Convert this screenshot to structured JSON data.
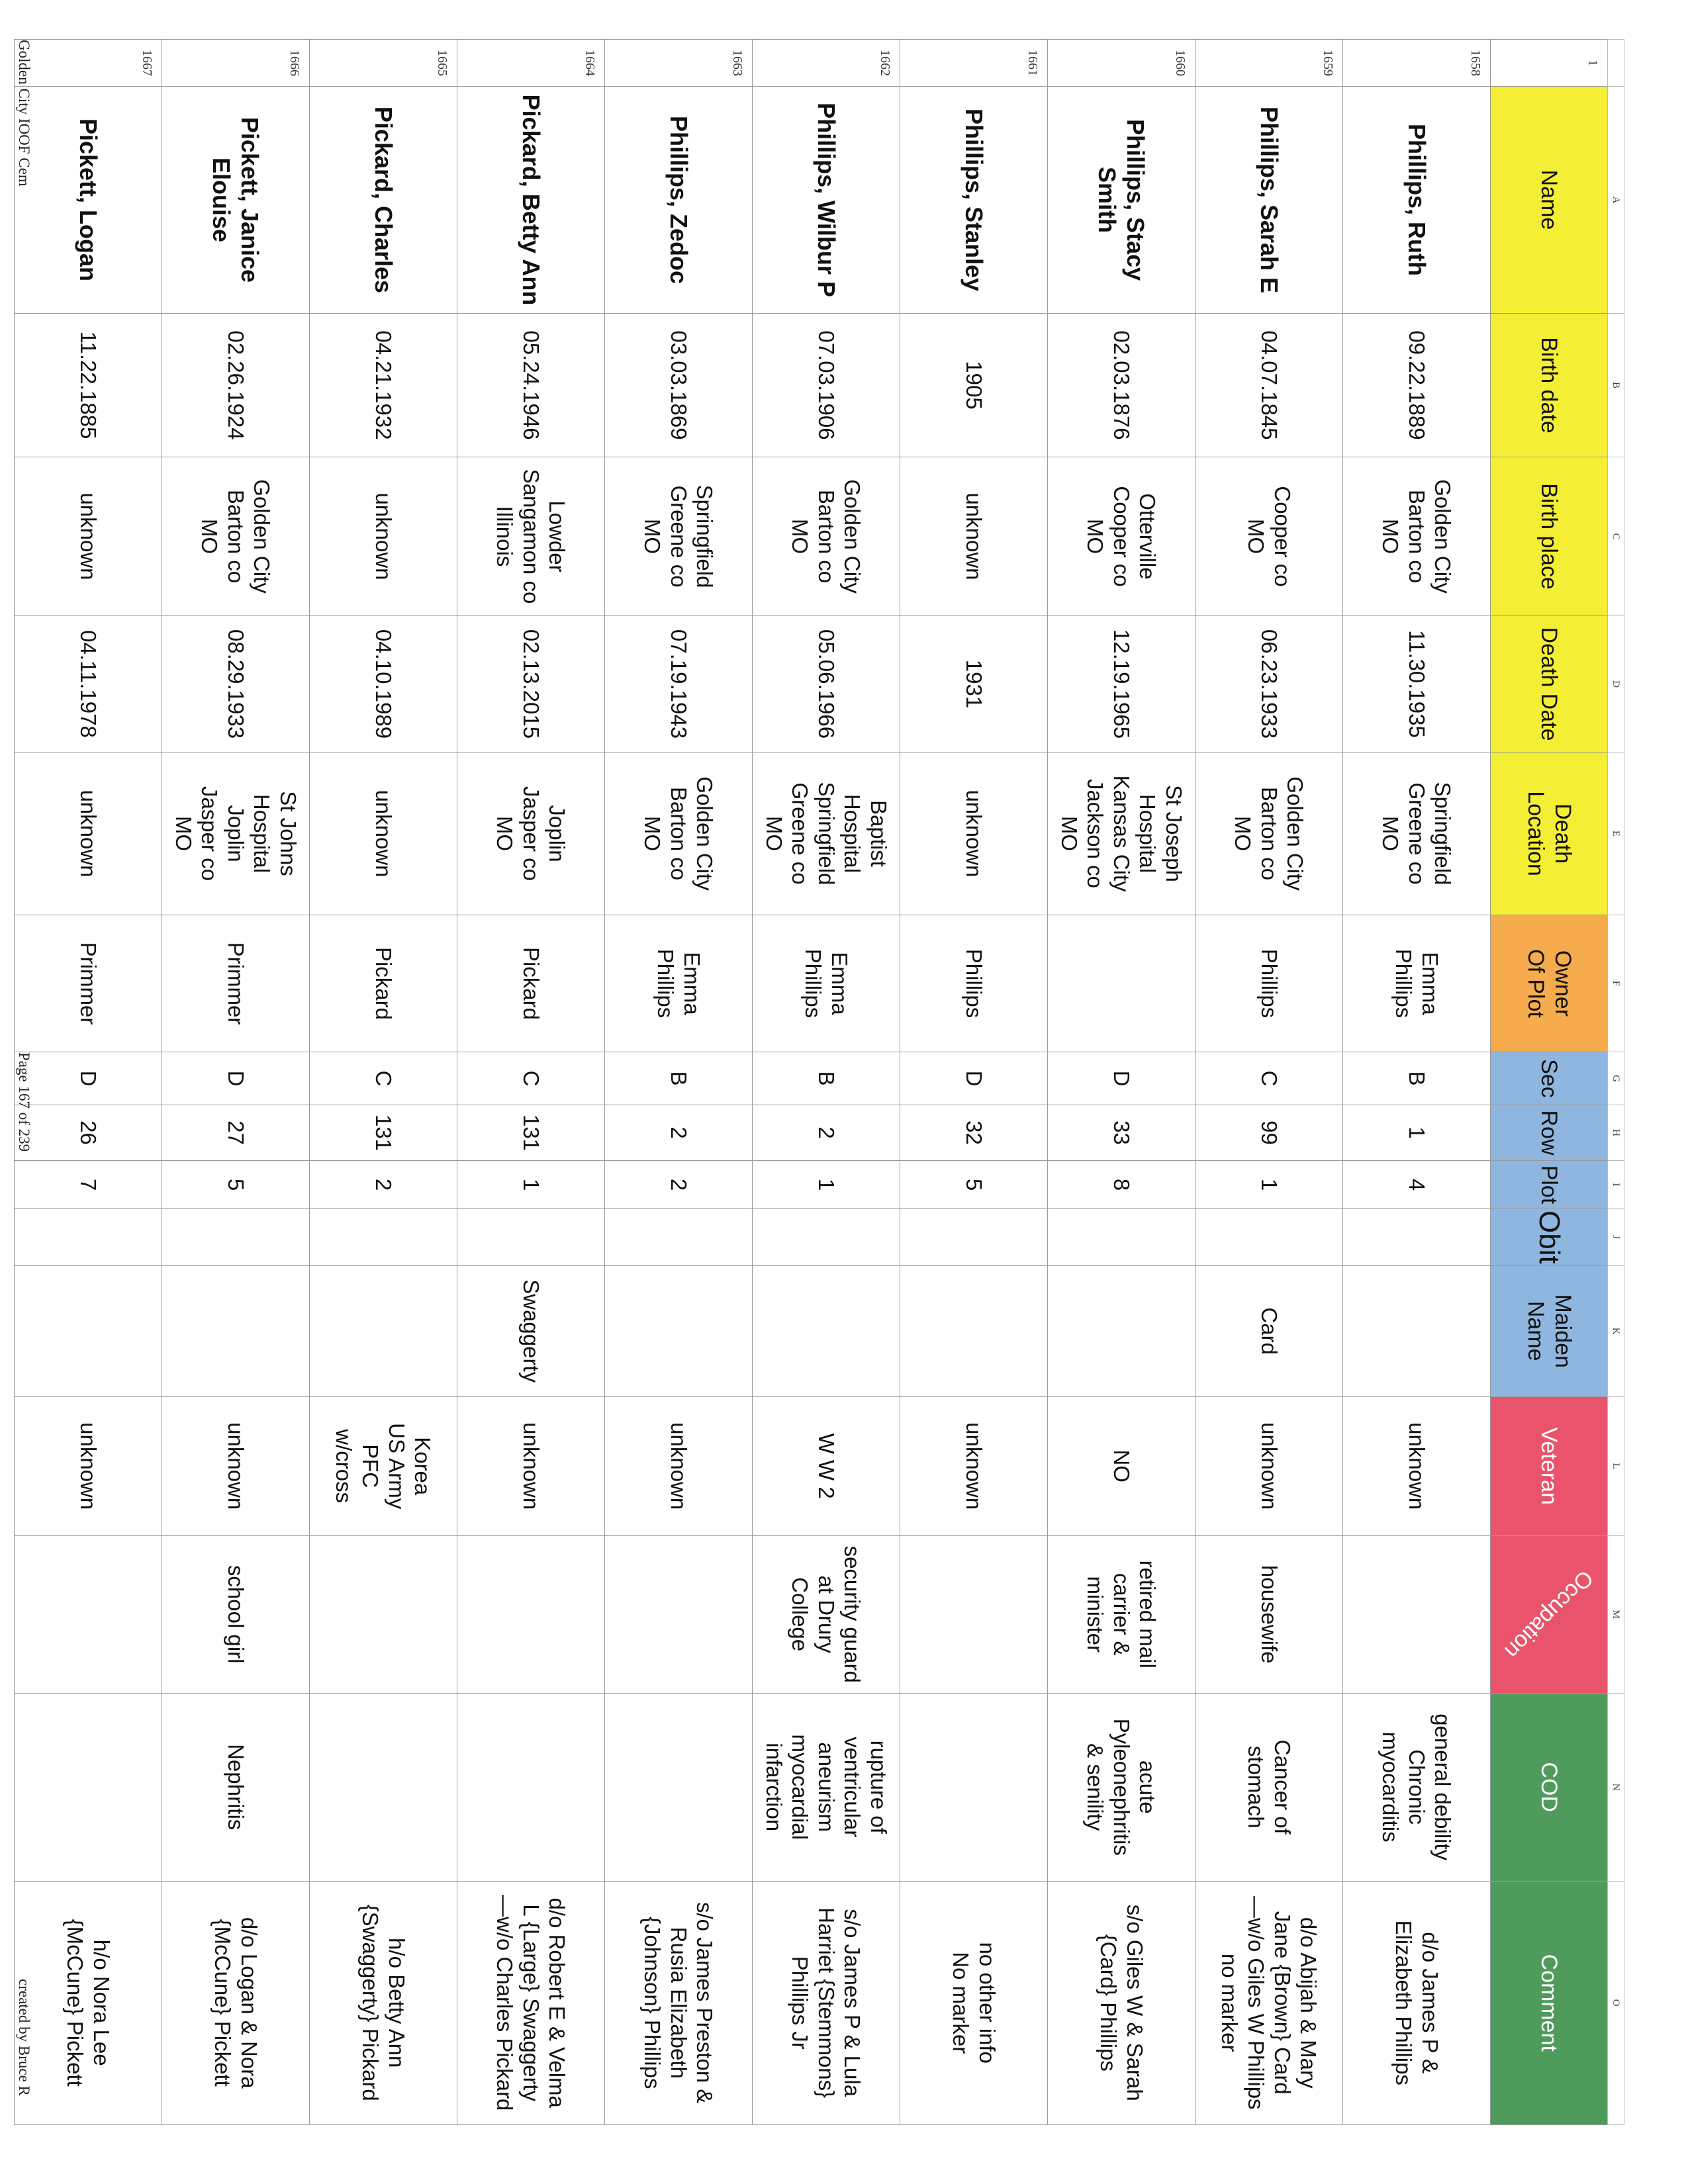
{
  "column_letters": [
    "",
    "A",
    "B",
    "C",
    "D",
    "E",
    "F",
    "G",
    "H",
    "I",
    "J",
    "K",
    "L",
    "M",
    "N",
    "O"
  ],
  "header": {
    "row_number": "1",
    "columns": [
      {
        "label": "Name",
        "color": "#f4ef34"
      },
      {
        "label": "Birth date",
        "color": "#f4ef34"
      },
      {
        "label": "Birth place",
        "color": "#f4ef34"
      },
      {
        "label": "Death Date",
        "color": "#f4ef34"
      },
      {
        "label": "Death\nLocation",
        "color": "#f4ef34"
      },
      {
        "label": "Owner\nOf Plot",
        "color": "#f6ab4c"
      },
      {
        "label": "Sec",
        "color": "#8fb6de"
      },
      {
        "label": "Row",
        "color": "#8fb6de"
      },
      {
        "label": "Plot",
        "color": "#8fb6de"
      },
      {
        "label": "Obit",
        "color": "#8fb6de"
      },
      {
        "label": "Maiden\nName",
        "color": "#8fb6de"
      },
      {
        "label": "Veteran",
        "color": "#e9546c"
      },
      {
        "label": "Occupation",
        "color": "#e9546c"
      },
      {
        "label": "COD",
        "color": "#4f9b5c"
      },
      {
        "label": "Comment",
        "color": "#4f9b5c"
      }
    ]
  },
  "rows": [
    {
      "num": "1658",
      "cells": [
        "Phillips, Ruth",
        "09.22.1889",
        "Golden City\nBarton co\nMO",
        "11.30.1935",
        "Springfield\nGreene co\nMO",
        "Emma\nPhillips",
        "B",
        "1",
        "4",
        "",
        "",
        "unknown",
        "",
        "general debility\nChronic\nmyocarditis",
        "d/o James P &\nElizabeth Phillips"
      ]
    },
    {
      "num": "1659",
      "cells": [
        "Phillips, Sarah E",
        "04.07.1845",
        "Cooper co\nMO",
        "06.23.1933",
        "Golden City\nBarton co\nMO",
        "Phillips",
        "C",
        "99",
        "1",
        "",
        "Card",
        "unknown",
        "housewife",
        "Cancer of\nstomach",
        "d/o Abijah & Mary\nJane {Brown} Card\n—w/o Giles W Phillips\nno marker"
      ]
    },
    {
      "num": "1660",
      "cells": [
        "Phillips, Stacy\nSmith",
        "02.03.1876",
        "Otterville\nCooper co\nMO",
        "12.19.1965",
        "St Joseph\nHospital\nKansas City\nJackson co\nMO",
        "",
        "D",
        "33",
        "8",
        "",
        "",
        "NO",
        "retired mail\ncarrier &\nminister",
        "acute\nPyleonephritis\n& senility",
        "s/o Giles W & Sarah\n{Card} Phillips"
      ]
    },
    {
      "num": "1661",
      "cells": [
        "Phillips, Stanley",
        "1905",
        "unknown",
        "1931",
        "unknown",
        "Phillips",
        "D",
        "32",
        "5",
        "",
        "",
        "unknown",
        "",
        "",
        "no other info\nNo marker"
      ]
    },
    {
      "num": "1662",
      "cells": [
        "Phillips, Wilbur P",
        "07.03.1906",
        "Golden City\nBarton co\nMO",
        "05.06.1966",
        "Baptist\nHospital\nSpringfield\nGreene co\nMO",
        "Emma\nPhillips",
        "B",
        "2",
        "1",
        "",
        "",
        "W W 2",
        "security guard\nat Drury\nCollege",
        "rupture of\nventricular\naneurism\nmyocardial\ninfarction",
        "s/o James P & Lula\nHarriet {Stemmons}\nPhillips Jr"
      ]
    },
    {
      "num": "1663",
      "cells": [
        "Phillips, Zedoc",
        "03.03.1869",
        "Springfield\nGreene co\nMO",
        "07.19.1943",
        "Golden City\nBarton co\nMO",
        "Emma\nPhillips",
        "B",
        "2",
        "2",
        "",
        "",
        "unknown",
        "",
        "",
        "s/o James Preston &\nRusia Elizabeth\n{Johnson} Phillips"
      ]
    },
    {
      "num": "1664",
      "cells": [
        "Pickard, Betty Ann",
        "05.24.1946",
        "Lowder\nSangamon co\nIllinois",
        "02.13.2015",
        "Joplin\nJasper co\nMO",
        "Pickard",
        "C",
        "131",
        "1",
        "",
        "Swaggerty",
        "unknown",
        "",
        "",
        "d/o Robert E & Velma\nL {Large} Swaggerty\n—w/o Charles Pickard"
      ]
    },
    {
      "num": "1665",
      "cells": [
        "Pickard, Charles",
        "04.21.1932",
        "unknown",
        "04.10.1989",
        "unknown",
        "Pickard",
        "C",
        "131",
        "2",
        "",
        "",
        "Korea\nUS Army\nPFC\nw/cross",
        "",
        "",
        "h/o Betty Ann\n{Swaggerty} Pickard"
      ]
    },
    {
      "num": "1666",
      "cells": [
        "Pickett, Janice\nElouise",
        "02.26.1924",
        "Golden City\nBarton co\nMO",
        "08.29.1933",
        "St Johns\nHospital\nJoplin\nJasper co\nMO",
        "Primmer",
        "D",
        "27",
        "5",
        "",
        "",
        "unknown",
        "school girl",
        "Nephritis",
        "d/o Logan & Nora\n{McCune} Pickett"
      ]
    },
    {
      "num": "1667",
      "cells": [
        "Pickett, Logan",
        "11.22.1885",
        "unknown",
        "04.11.1978",
        "unknown",
        "Primmer",
        "D",
        "26",
        "7",
        "",
        "",
        "unknown",
        "",
        "",
        "h/o Nora Lee\n{McCune} Pickett"
      ]
    }
  ],
  "footer": {
    "left": "Golden City IOOF Cem",
    "center": "Page 167 of 239",
    "right": "created by Bruce R"
  }
}
